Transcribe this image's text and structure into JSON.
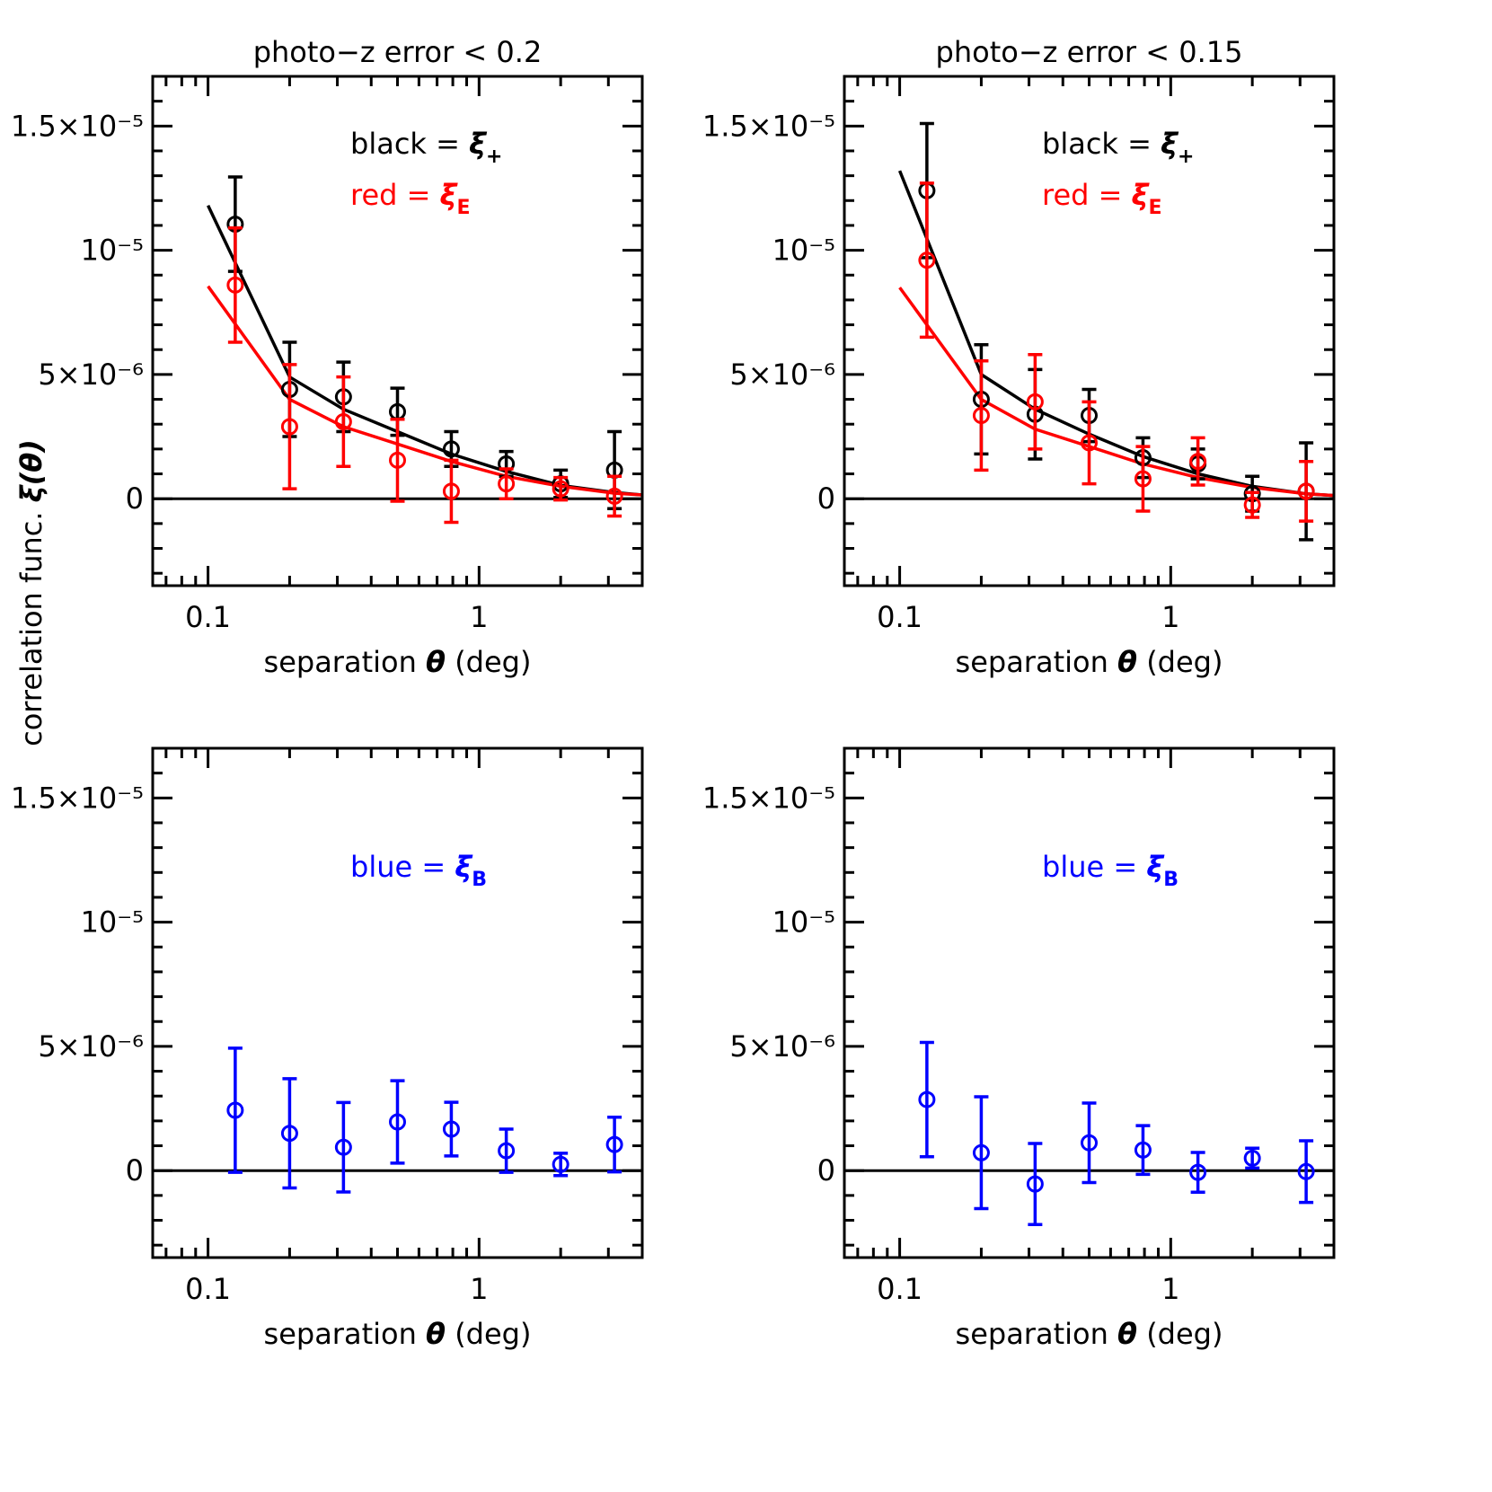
{
  "figure_ylabel": "correlation func. ",
  "figure_ylabel_symbol": "ξ(θ)",
  "chart_data": [
    {
      "type": "scatter",
      "title": "photo−z error < 0.2",
      "xlabel": "separation ",
      "xlabel_symbol": "θ",
      "xlabel_unit": " (deg)",
      "xscale": "log",
      "xlim": [
        0.0625,
        4
      ],
      "xticks": [
        0.1,
        1
      ],
      "xminorticks": [
        0.07,
        0.08,
        0.09,
        0.2,
        0.3,
        0.4,
        0.5,
        0.6,
        0.7,
        0.8,
        0.9,
        2,
        3
      ],
      "ylim": [
        -3.5e-06,
        1.7e-05
      ],
      "yticks": [
        0,
        {
          "value": 5e-06,
          "label": "5×10⁻⁶"
        },
        {
          "value": 1e-05,
          "label": "10⁻⁵"
        },
        {
          "value": 1.5e-05,
          "label": "1.5×10⁻⁵"
        }
      ],
      "yminorticks": [
        -3e-06,
        -2e-06,
        -1e-06,
        1e-06,
        2e-06,
        3e-06,
        4e-06,
        6e-06,
        7e-06,
        8e-06,
        9e-06,
        1.1e-05,
        1.2e-05,
        1.3e-05,
        1.4e-05,
        1.6e-05
      ],
      "zero_line": true,
      "x": [
        0.126,
        0.2,
        0.316,
        0.5,
        0.79,
        1.26,
        2.0,
        3.16
      ],
      "series": [
        {
          "color": "#000000",
          "values": [
            1.105e-05,
            4.4e-06,
            4.1e-06,
            3.5e-06,
            2e-06,
            1.4e-06,
            6e-07,
            1.15e-06
          ],
          "errors": [
            1.9e-06,
            1.9e-06,
            1.4e-06,
            9.5e-07,
            7e-07,
            5e-07,
            5.5e-07,
            1.55e-06
          ]
        },
        {
          "color": "#ff0000",
          "values": [
            8.6e-06,
            2.9e-06,
            3.1e-06,
            1.55e-06,
            3e-07,
            6e-07,
            4e-07,
            1e-07
          ],
          "errors": [
            2.3e-06,
            2.5e-06,
            1.8e-06,
            1.65e-06,
            1.25e-06,
            6e-07,
            4.5e-07,
            8e-07
          ]
        }
      ],
      "curves": [
        {
          "color": "#000000",
          "x": [
            0.1,
            0.2,
            0.316,
            0.5,
            0.79,
            1.26,
            2,
            3.16,
            4
          ],
          "values": [
            1.18e-05,
            4.9e-06,
            3.6e-06,
            2.7e-06,
            1.8e-06,
            1.1e-06,
            5.4e-07,
            2.5e-07,
            1.5e-07
          ]
        },
        {
          "color": "#ff0000",
          "x": [
            0.1,
            0.2,
            0.316,
            0.5,
            0.79,
            1.26,
            2,
            3.16,
            4
          ],
          "values": [
            8.55e-06,
            4e-06,
            2.9e-06,
            2.2e-06,
            1.5e-06,
            9e-07,
            5e-07,
            2.2e-07,
            1.5e-07
          ]
        }
      ],
      "annotations": [
        {
          "text": "black  =  ",
          "symbol": "ξ",
          "subscript": "+",
          "color": "#000000"
        },
        {
          "text": "red  =  ",
          "symbol": "ξ",
          "subscript": "E",
          "color": "#ff0000"
        }
      ]
    },
    {
      "type": "scatter",
      "title": "photo−z error < 0.15",
      "xlabel": "separation ",
      "xlabel_symbol": "θ",
      "xlabel_unit": " (deg)",
      "xscale": "log",
      "xlim": [
        0.0625,
        4
      ],
      "xticks": [
        0.1,
        1
      ],
      "xminorticks": [
        0.07,
        0.08,
        0.09,
        0.2,
        0.3,
        0.4,
        0.5,
        0.6,
        0.7,
        0.8,
        0.9,
        2,
        3
      ],
      "ylim": [
        -3.5e-06,
        1.7e-05
      ],
      "yticks": [
        0,
        {
          "value": 5e-06,
          "label": "5×10⁻⁶"
        },
        {
          "value": 1e-05,
          "label": "10⁻⁵"
        },
        {
          "value": 1.5e-05,
          "label": "1.5×10⁻⁵"
        }
      ],
      "yminorticks": [
        -3e-06,
        -2e-06,
        -1e-06,
        1e-06,
        2e-06,
        3e-06,
        4e-06,
        6e-06,
        7e-06,
        8e-06,
        9e-06,
        1.1e-05,
        1.2e-05,
        1.3e-05,
        1.4e-05,
        1.6e-05
      ],
      "zero_line": true,
      "x": [
        0.126,
        0.2,
        0.316,
        0.5,
        0.79,
        1.26,
        2.0,
        3.16
      ],
      "series": [
        {
          "color": "#000000",
          "values": [
            1.24e-05,
            4e-06,
            3.4e-06,
            3.35e-06,
            1.65e-06,
            1.4e-06,
            2e-07,
            3e-07
          ],
          "errors": [
            2.7e-06,
            2.2e-06,
            1.8e-06,
            1.05e-06,
            8e-07,
            6e-07,
            7e-07,
            1.95e-06
          ]
        },
        {
          "color": "#ff0000",
          "values": [
            9.6e-06,
            3.35e-06,
            3.9e-06,
            2.25e-06,
            8e-07,
            1.5e-06,
            -2.5e-07,
            3e-07
          ],
          "errors": [
            3.1e-06,
            2.2e-06,
            1.9e-06,
            1.65e-06,
            1.3e-06,
            9.5e-07,
            5e-07,
            1.2e-06
          ]
        }
      ],
      "curves": [
        {
          "color": "#000000",
          "x": [
            0.1,
            0.2,
            0.316,
            0.5,
            0.79,
            1.26,
            2,
            3.16,
            4
          ],
          "values": [
            1.32e-05,
            5e-06,
            3.6e-06,
            2.6e-06,
            1.7e-06,
            1e-06,
            5e-07,
            2e-07,
            1.3e-07
          ]
        },
        {
          "color": "#ff0000",
          "x": [
            0.1,
            0.2,
            0.316,
            0.5,
            0.79,
            1.26,
            2,
            3.16,
            4
          ],
          "values": [
            8.5e-06,
            4e-06,
            2.8e-06,
            2.1e-06,
            1.4e-06,
            8.5e-07,
            4.5e-07,
            2e-07,
            1.3e-07
          ]
        }
      ],
      "annotations": [
        {
          "text": "black  =  ",
          "symbol": "ξ",
          "subscript": "+",
          "color": "#000000"
        },
        {
          "text": "red  =  ",
          "symbol": "ξ",
          "subscript": "E",
          "color": "#ff0000"
        }
      ]
    },
    {
      "type": "scatter",
      "xlabel": "separation ",
      "xlabel_symbol": "θ",
      "xlabel_unit": " (deg)",
      "xscale": "log",
      "xlim": [
        0.0625,
        4
      ],
      "xticks": [
        0.1,
        1
      ],
      "xminorticks": [
        0.07,
        0.08,
        0.09,
        0.2,
        0.3,
        0.4,
        0.5,
        0.6,
        0.7,
        0.8,
        0.9,
        2,
        3
      ],
      "ylim": [
        -3.5e-06,
        1.7e-05
      ],
      "yticks": [
        0,
        {
          "value": 5e-06,
          "label": "5×10⁻⁶"
        },
        {
          "value": 1e-05,
          "label": "10⁻⁵"
        },
        {
          "value": 1.5e-05,
          "label": "1.5×10⁻⁵"
        }
      ],
      "yminorticks": [
        -3e-06,
        -2e-06,
        -1e-06,
        1e-06,
        2e-06,
        3e-06,
        4e-06,
        6e-06,
        7e-06,
        8e-06,
        9e-06,
        1.1e-05,
        1.2e-05,
        1.3e-05,
        1.4e-05,
        1.6e-05
      ],
      "zero_line": true,
      "x": [
        0.126,
        0.2,
        0.316,
        0.5,
        0.79,
        1.26,
        2.0,
        3.16
      ],
      "series": [
        {
          "color": "#0000ff",
          "values": [
            2.43e-06,
            1.5e-06,
            9.4e-07,
            1.96e-06,
            1.67e-06,
            8e-07,
            2.5e-07,
            1.05e-06
          ],
          "errors": [
            2.5e-06,
            2.2e-06,
            1.8e-06,
            1.66e-06,
            1.08e-06,
            8.7e-07,
            4.5e-07,
            1.1e-06
          ]
        }
      ],
      "annotations": [
        {
          "text": "blue  =  ",
          "symbol": "ξ",
          "subscript": "B",
          "color": "#0000ff"
        }
      ]
    },
    {
      "type": "scatter",
      "xlabel": "separation ",
      "xlabel_symbol": "θ",
      "xlabel_unit": " (deg)",
      "xscale": "log",
      "xlim": [
        0.0625,
        4
      ],
      "xticks": [
        0.1,
        1
      ],
      "xminorticks": [
        0.07,
        0.08,
        0.09,
        0.2,
        0.3,
        0.4,
        0.5,
        0.6,
        0.7,
        0.8,
        0.9,
        2,
        3
      ],
      "ylim": [
        -3.5e-06,
        1.7e-05
      ],
      "yticks": [
        0,
        {
          "value": 5e-06,
          "label": "5×10⁻⁶"
        },
        {
          "value": 1e-05,
          "label": "10⁻⁵"
        },
        {
          "value": 1.5e-05,
          "label": "1.5×10⁻⁵"
        }
      ],
      "yminorticks": [
        -3e-06,
        -2e-06,
        -1e-06,
        1e-06,
        2e-06,
        3e-06,
        4e-06,
        6e-06,
        7e-06,
        8e-06,
        9e-06,
        1.1e-05,
        1.2e-05,
        1.3e-05,
        1.4e-05,
        1.6e-05
      ],
      "zero_line": true,
      "x": [
        0.126,
        0.2,
        0.316,
        0.5,
        0.79,
        1.26,
        2.0,
        3.16
      ],
      "series": [
        {
          "color": "#0000ff",
          "values": [
            2.86e-06,
            7.2e-07,
            -5.4e-07,
            1.12e-06,
            8.3e-07,
            -7e-08,
            5e-07,
            -4e-08
          ],
          "errors": [
            2.3e-06,
            2.25e-06,
            1.63e-06,
            1.6e-06,
            9.8e-07,
            8e-07,
            4e-07,
            1.24e-06
          ]
        }
      ],
      "annotations": [
        {
          "text": "blue  =  ",
          "symbol": "ξ",
          "subscript": "B",
          "color": "#0000ff"
        }
      ]
    }
  ]
}
